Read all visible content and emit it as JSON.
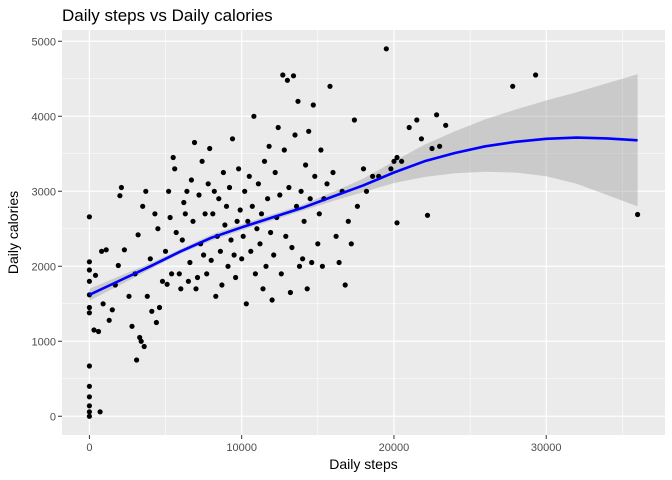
{
  "chart_data": {
    "type": "scatter",
    "title": "Daily steps vs Daily calories",
    "xlabel": "Daily steps",
    "ylabel": "Daily calories",
    "xlim": [
      -1800,
      37800
    ],
    "ylim": [
      -250,
      5150
    ],
    "x_ticks": [
      0,
      10000,
      20000,
      30000
    ],
    "x_tick_labels": [
      "0",
      "10000",
      "20000",
      "30000"
    ],
    "y_ticks": [
      0,
      1000,
      2000,
      3000,
      4000,
      5000
    ],
    "y_tick_labels": [
      "0",
      "1000",
      "2000",
      "3000",
      "4000",
      "5000"
    ],
    "grid": true,
    "background": "#ebebeb",
    "grid_color": "#ffffff",
    "point_color": "#000000",
    "smooth_color": "#0000ff",
    "band_color": "#999999",
    "smooth": {
      "x": [
        0,
        2000,
        4000,
        6000,
        8000,
        10000,
        12000,
        14000,
        16000,
        18000,
        20000,
        22000,
        24000,
        26000,
        28000,
        30000,
        32000,
        34000,
        36000
      ],
      "y": [
        1620,
        1810,
        2000,
        2200,
        2380,
        2520,
        2650,
        2780,
        2930,
        3080,
        3250,
        3400,
        3510,
        3600,
        3660,
        3700,
        3715,
        3705,
        3680
      ],
      "upper": [
        1700,
        1870,
        2040,
        2230,
        2420,
        2560,
        2690,
        2820,
        2990,
        3170,
        3400,
        3620,
        3800,
        3960,
        4090,
        4210,
        4320,
        4440,
        4560
      ],
      "lower": [
        1540,
        1750,
        1960,
        2170,
        2340,
        2480,
        2610,
        2740,
        2870,
        2990,
        3110,
        3190,
        3240,
        3260,
        3250,
        3200,
        3100,
        2950,
        2800
      ]
    },
    "points": [
      [
        0,
        0
      ],
      [
        0,
        60
      ],
      [
        0,
        140
      ],
      [
        0,
        260
      ],
      [
        0,
        400
      ],
      [
        0,
        670
      ],
      [
        0,
        1380
      ],
      [
        0,
        1450
      ],
      [
        0,
        1620
      ],
      [
        0,
        1800
      ],
      [
        0,
        1950
      ],
      [
        0,
        2060
      ],
      [
        0,
        2660
      ],
      [
        700,
        60
      ],
      [
        300,
        1150
      ],
      [
        600,
        1130
      ],
      [
        400,
        1880
      ],
      [
        800,
        2200
      ],
      [
        1100,
        2220
      ],
      [
        900,
        1500
      ],
      [
        1300,
        1280
      ],
      [
        1500,
        1420
      ],
      [
        1700,
        1750
      ],
      [
        1900,
        2010
      ],
      [
        2000,
        2940
      ],
      [
        2100,
        3050
      ],
      [
        2300,
        2220
      ],
      [
        2600,
        1600
      ],
      [
        2800,
        1200
      ],
      [
        3000,
        1900
      ],
      [
        3200,
        2420
      ],
      [
        3300,
        1050
      ],
      [
        3400,
        1000
      ],
      [
        3100,
        750
      ],
      [
        3500,
        2800
      ],
      [
        3700,
        3000
      ],
      [
        3800,
        1600
      ],
      [
        3600,
        930
      ],
      [
        4000,
        2100
      ],
      [
        4100,
        1400
      ],
      [
        4300,
        2700
      ],
      [
        4500,
        2500
      ],
      [
        4600,
        1450
      ],
      [
        4400,
        1250
      ],
      [
        4800,
        1800
      ],
      [
        5000,
        2200
      ],
      [
        5100,
        1760
      ],
      [
        5200,
        3000
      ],
      [
        5300,
        2650
      ],
      [
        5400,
        1900
      ],
      [
        5600,
        3300
      ],
      [
        5700,
        2450
      ],
      [
        5500,
        3450
      ],
      [
        5900,
        1900
      ],
      [
        6000,
        1700
      ],
      [
        6100,
        2350
      ],
      [
        6200,
        2850
      ],
      [
        6300,
        2700
      ],
      [
        6400,
        3000
      ],
      [
        6500,
        1800
      ],
      [
        6600,
        2050
      ],
      [
        6700,
        3150
      ],
      [
        6800,
        2600
      ],
      [
        6900,
        3650
      ],
      [
        7000,
        1700
      ],
      [
        7100,
        1850
      ],
      [
        7200,
        2950
      ],
      [
        7300,
        2300
      ],
      [
        7400,
        3400
      ],
      [
        7500,
        2150
      ],
      [
        7600,
        2700
      ],
      [
        7700,
        1900
      ],
      [
        7800,
        3100
      ],
      [
        7900,
        3570
      ],
      [
        8000,
        2080
      ],
      [
        8100,
        2700
      ],
      [
        8200,
        3000
      ],
      [
        8300,
        1600
      ],
      [
        8400,
        2400
      ],
      [
        8500,
        2900
      ],
      [
        8600,
        2200
      ],
      [
        8700,
        1750
      ],
      [
        8800,
        3250
      ],
      [
        8900,
        2550
      ],
      [
        9000,
        2800
      ],
      [
        9100,
        2000
      ],
      [
        9200,
        3050
      ],
      [
        9300,
        2350
      ],
      [
        9400,
        3700
      ],
      [
        9500,
        2150
      ],
      [
        9600,
        1850
      ],
      [
        9700,
        2600
      ],
      [
        9800,
        3300
      ],
      [
        9900,
        2750
      ],
      [
        10000,
        2100
      ],
      [
        10100,
        2400
      ],
      [
        10200,
        3000
      ],
      [
        10300,
        1500
      ],
      [
        10400,
        2600
      ],
      [
        10500,
        3200
      ],
      [
        10600,
        2200
      ],
      [
        10700,
        2800
      ],
      [
        10800,
        4000
      ],
      [
        10900,
        1900
      ],
      [
        11000,
        2500
      ],
      [
        11100,
        3100
      ],
      [
        11200,
        2300
      ],
      [
        11300,
        2700
      ],
      [
        11400,
        1700
      ],
      [
        11500,
        3400
      ],
      [
        11600,
        2000
      ],
      [
        11700,
        2900
      ],
      [
        11800,
        3600
      ],
      [
        11900,
        2450
      ],
      [
        12000,
        1550
      ],
      [
        12100,
        2150
      ],
      [
        12200,
        3250
      ],
      [
        12300,
        2650
      ],
      [
        12400,
        3850
      ],
      [
        12500,
        2950
      ],
      [
        12600,
        1900
      ],
      [
        12700,
        4550
      ],
      [
        12800,
        3550
      ],
      [
        12900,
        2400
      ],
      [
        13000,
        4480
      ],
      [
        13100,
        3050
      ],
      [
        13200,
        1650
      ],
      [
        13300,
        2250
      ],
      [
        13400,
        4540
      ],
      [
        13500,
        3750
      ],
      [
        13600,
        2800
      ],
      [
        13700,
        4200
      ],
      [
        13800,
        2000
      ],
      [
        13900,
        3000
      ],
      [
        14000,
        2100
      ],
      [
        14100,
        2600
      ],
      [
        14200,
        3350
      ],
      [
        14300,
        1700
      ],
      [
        14400,
        3800
      ],
      [
        14500,
        2900
      ],
      [
        14600,
        2050
      ],
      [
        14700,
        4150
      ],
      [
        14800,
        3200
      ],
      [
        15000,
        2300
      ],
      [
        15100,
        2700
      ],
      [
        15200,
        3550
      ],
      [
        15300,
        2000
      ],
      [
        15400,
        2900
      ],
      [
        15600,
        3100
      ],
      [
        15800,
        4400
      ],
      [
        16000,
        3250
      ],
      [
        16200,
        2400
      ],
      [
        16400,
        2050
      ],
      [
        16600,
        3000
      ],
      [
        16800,
        1750
      ],
      [
        17000,
        2600
      ],
      [
        17200,
        2300
      ],
      [
        17400,
        3950
      ],
      [
        17600,
        2800
      ],
      [
        18000,
        3300
      ],
      [
        18200,
        3000
      ],
      [
        18600,
        3200
      ],
      [
        19000,
        3200
      ],
      [
        19500,
        4900
      ],
      [
        19800,
        3300
      ],
      [
        20000,
        3400
      ],
      [
        20200,
        3450
      ],
      [
        20200,
        2580
      ],
      [
        20500,
        3400
      ],
      [
        21000,
        3850
      ],
      [
        21500,
        3950
      ],
      [
        21800,
        3700
      ],
      [
        22200,
        2680
      ],
      [
        22500,
        3570
      ],
      [
        22800,
        4020
      ],
      [
        23000,
        3600
      ],
      [
        23400,
        3880
      ],
      [
        27800,
        4400
      ],
      [
        29300,
        4550
      ],
      [
        36000,
        2690
      ]
    ]
  }
}
